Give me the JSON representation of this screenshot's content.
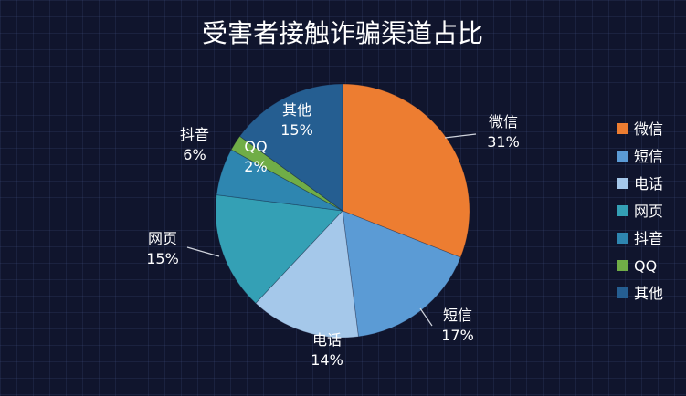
{
  "chart_data": {
    "type": "pie",
    "title": "受害者接触诈骗渠道占比",
    "legend_position": "right",
    "slices": [
      {
        "name": "微信",
        "value": 31,
        "label": "31%",
        "color": "#ed7d31"
      },
      {
        "name": "短信",
        "value": 17,
        "label": "17%",
        "color": "#5b9bd5"
      },
      {
        "name": "电话",
        "value": 14,
        "label": "14%",
        "color": "#a5c8ea"
      },
      {
        "name": "网页",
        "value": 15,
        "label": "15%",
        "color": "#34a0b5"
      },
      {
        "name": "抖音",
        "value": 6,
        "label": "6%",
        "color": "#2e86b0"
      },
      {
        "name": "QQ",
        "value": 2,
        "label": "2%",
        "color": "#70ad47"
      },
      {
        "name": "其他",
        "value": 15,
        "label": "15%",
        "color": "#255e91"
      }
    ]
  }
}
